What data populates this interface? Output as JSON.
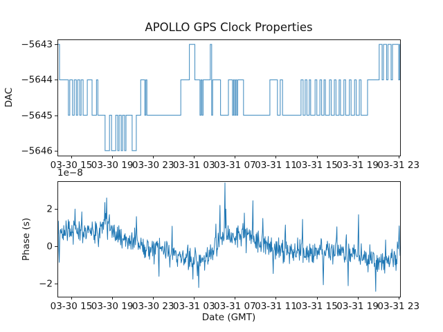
{
  "figure": {
    "title": "APOLLO GPS Clock Properties",
    "xlabel": "Date (GMT)",
    "background": "#ffffff",
    "frame_color": "#1a1a1a",
    "text_color": "#141414"
  },
  "xticks": {
    "labels": [
      "03-30 15",
      "03-30 19",
      "03-30 23",
      "03-31 03",
      "03-31 07",
      "03-31 11",
      "03-31 15",
      "03-31 19",
      "03-31 23"
    ],
    "fracs": [
      0.0404,
      0.1598,
      0.2792,
      0.3985,
      0.5179,
      0.6373,
      0.7566,
      0.876,
      0.9954
    ]
  },
  "chart_data": [
    {
      "type": "step",
      "series_name": "DAC",
      "ylabel": "DAC",
      "color": "#1f77b4",
      "ylim": [
        -5646.14,
        -5642.86
      ],
      "ytick_values": [
        -5643,
        -5644,
        -5645,
        -5646
      ],
      "ytick_labels": [
        "−5643",
        "−5644",
        "−5645",
        "−5646"
      ],
      "segments": [
        [
          0.0,
          -5643
        ],
        [
          0.006,
          -5644
        ],
        [
          0.032,
          -5645
        ],
        [
          0.036,
          -5644
        ],
        [
          0.044,
          -5645
        ],
        [
          0.049,
          -5644
        ],
        [
          0.055,
          -5645
        ],
        [
          0.059,
          -5644
        ],
        [
          0.065,
          -5645
        ],
        [
          0.069,
          -5644
        ],
        [
          0.075,
          -5645
        ],
        [
          0.087,
          -5644
        ],
        [
          0.101,
          -5645
        ],
        [
          0.114,
          -5644
        ],
        [
          0.118,
          -5645
        ],
        [
          0.139,
          -5646
        ],
        [
          0.152,
          -5645
        ],
        [
          0.158,
          -5646
        ],
        [
          0.17,
          -5645
        ],
        [
          0.176,
          -5646
        ],
        [
          0.18,
          -5645
        ],
        [
          0.186,
          -5646
        ],
        [
          0.19,
          -5645
        ],
        [
          0.196,
          -5646
        ],
        [
          0.2,
          -5645
        ],
        [
          0.218,
          -5646
        ],
        [
          0.23,
          -5645
        ],
        [
          0.243,
          -5644
        ],
        [
          0.255,
          -5645
        ],
        [
          0.258,
          -5644
        ],
        [
          0.261,
          -5645
        ],
        [
          0.36,
          -5644
        ],
        [
          0.385,
          -5643
        ],
        [
          0.401,
          -5644
        ],
        [
          0.416,
          -5645
        ],
        [
          0.419,
          -5644
        ],
        [
          0.422,
          -5645
        ],
        [
          0.425,
          -5644
        ],
        [
          0.446,
          -5643
        ],
        [
          0.45,
          -5645
        ],
        [
          0.453,
          -5644
        ],
        [
          0.476,
          -5645
        ],
        [
          0.499,
          -5644
        ],
        [
          0.511,
          -5645
        ],
        [
          0.514,
          -5644
        ],
        [
          0.517,
          -5645
        ],
        [
          0.52,
          -5644
        ],
        [
          0.523,
          -5645
        ],
        [
          0.526,
          -5644
        ],
        [
          0.543,
          -5645
        ],
        [
          0.62,
          -5644
        ],
        [
          0.642,
          -5645
        ],
        [
          0.65,
          -5644
        ],
        [
          0.657,
          -5645
        ],
        [
          0.711,
          -5644
        ],
        [
          0.717,
          -5645
        ],
        [
          0.723,
          -5644
        ],
        [
          0.728,
          -5645
        ],
        [
          0.735,
          -5644
        ],
        [
          0.739,
          -5645
        ],
        [
          0.752,
          -5644
        ],
        [
          0.757,
          -5645
        ],
        [
          0.766,
          -5644
        ],
        [
          0.771,
          -5645
        ],
        [
          0.778,
          -5644
        ],
        [
          0.782,
          -5645
        ],
        [
          0.794,
          -5644
        ],
        [
          0.799,
          -5645
        ],
        [
          0.808,
          -5644
        ],
        [
          0.813,
          -5645
        ],
        [
          0.822,
          -5644
        ],
        [
          0.826,
          -5645
        ],
        [
          0.836,
          -5644
        ],
        [
          0.841,
          -5645
        ],
        [
          0.852,
          -5644
        ],
        [
          0.857,
          -5645
        ],
        [
          0.867,
          -5644
        ],
        [
          0.872,
          -5645
        ],
        [
          0.881,
          -5644
        ],
        [
          0.886,
          -5645
        ],
        [
          0.905,
          -5644
        ],
        [
          0.939,
          -5643
        ],
        [
          0.9475,
          -5644
        ],
        [
          0.9515,
          -5643
        ],
        [
          0.9606,
          -5644
        ],
        [
          0.9646,
          -5643
        ],
        [
          0.9737,
          -5644
        ],
        [
          0.9778,
          -5643
        ],
        [
          0.996,
          -5644
        ],
        [
          0.999,
          -5643
        ]
      ]
    },
    {
      "type": "line",
      "series_name": "Phase",
      "ylabel": "Phase (s)",
      "offset_text": "1e−8",
      "color": "#1f77b4",
      "value_scale": "1e-8",
      "ylim": [
        -2.69,
        3.49
      ],
      "ytick_values": [
        2,
        0,
        -2
      ],
      "ytick_labels": [
        "2",
        "0",
        "−2"
      ],
      "n_points": 760,
      "seed": 11,
      "noise_amp": 0.45,
      "baseline": [
        [
          0.0,
          0.55
        ],
        [
          0.004,
          0.1
        ],
        [
          0.01,
          0.75
        ],
        [
          0.03,
          0.85
        ],
        [
          0.06,
          0.9
        ],
        [
          0.1,
          0.8
        ],
        [
          0.125,
          1.0
        ],
        [
          0.14,
          1.3
        ],
        [
          0.15,
          1.1
        ],
        [
          0.165,
          0.85
        ],
        [
          0.19,
          0.55
        ],
        [
          0.22,
          0.25
        ],
        [
          0.25,
          0.05
        ],
        [
          0.28,
          -0.2
        ],
        [
          0.31,
          -0.1
        ],
        [
          0.33,
          -0.3
        ],
        [
          0.36,
          -0.5
        ],
        [
          0.39,
          -0.6
        ],
        [
          0.42,
          -0.7
        ],
        [
          0.44,
          -0.5
        ],
        [
          0.46,
          -0.15
        ],
        [
          0.48,
          0.4
        ],
        [
          0.5,
          0.6
        ],
        [
          0.52,
          0.55
        ],
        [
          0.545,
          0.7
        ],
        [
          0.565,
          0.5
        ],
        [
          0.585,
          0.3
        ],
        [
          0.61,
          0.1
        ],
        [
          0.63,
          -0.15
        ],
        [
          0.655,
          -0.3
        ],
        [
          0.68,
          -0.3
        ],
        [
          0.7,
          -0.2
        ],
        [
          0.72,
          -0.3
        ],
        [
          0.745,
          -0.35
        ],
        [
          0.77,
          -0.35
        ],
        [
          0.795,
          -0.25
        ],
        [
          0.82,
          -0.3
        ],
        [
          0.845,
          -0.4
        ],
        [
          0.87,
          -0.45
        ],
        [
          0.895,
          -0.55
        ],
        [
          0.915,
          -0.65
        ],
        [
          0.935,
          -0.8
        ],
        [
          0.955,
          -0.8
        ],
        [
          0.975,
          -0.7
        ],
        [
          0.99,
          -0.6
        ],
        [
          1.0,
          -0.1
        ]
      ],
      "spikes": [
        [
          0.002,
          1.35
        ],
        [
          0.005,
          -0.85
        ],
        [
          0.051,
          2.0
        ],
        [
          0.071,
          1.85
        ],
        [
          0.138,
          2.35
        ],
        [
          0.143,
          2.6
        ],
        [
          0.23,
          1.6
        ],
        [
          0.297,
          -1.6
        ],
        [
          0.395,
          -1.75
        ],
        [
          0.412,
          -2.2
        ],
        [
          0.463,
          1.2
        ],
        [
          0.474,
          2.2
        ],
        [
          0.489,
          3.4
        ],
        [
          0.492,
          2.0
        ],
        [
          0.57,
          2.45
        ],
        [
          0.6,
          1.5
        ],
        [
          0.63,
          -1.45
        ],
        [
          0.665,
          1.15
        ],
        [
          0.715,
          1.45
        ],
        [
          0.776,
          -2.05
        ],
        [
          0.815,
          1.05
        ],
        [
          0.849,
          -2.1
        ],
        [
          0.879,
          1.7
        ],
        [
          0.929,
          -2.4
        ],
        [
          0.9575,
          0.35
        ],
        [
          0.998,
          1.1
        ]
      ]
    }
  ]
}
